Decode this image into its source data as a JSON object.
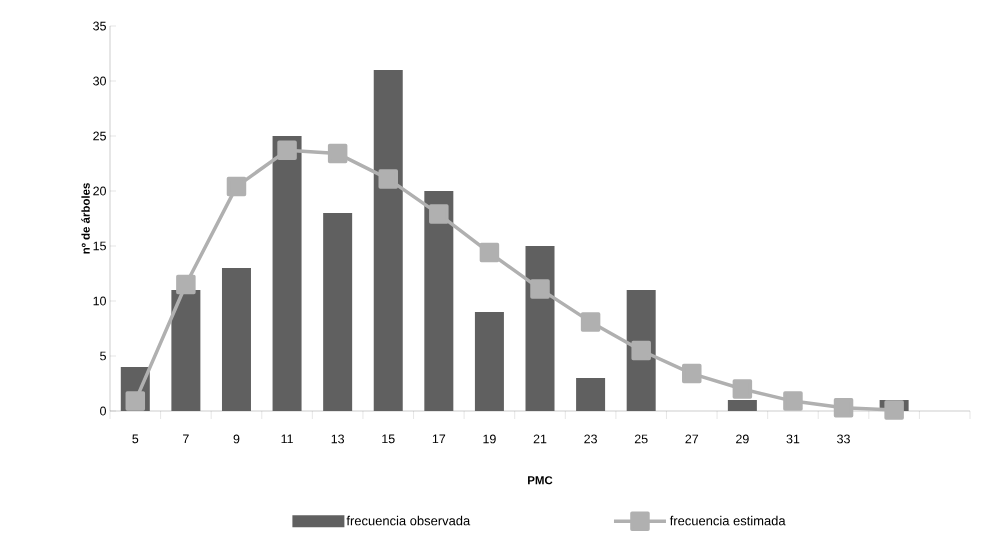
{
  "chart_data": {
    "type": "bar",
    "xlabel": "PMC",
    "ylabel": "nº de árboles",
    "categories": [
      "5",
      "7",
      "9",
      "11",
      "13",
      "15",
      "17",
      "19",
      "21",
      "23",
      "25",
      "27",
      "29",
      "31",
      "33",
      null,
      null
    ],
    "series": [
      {
        "name": "frecuencia observada",
        "color": "#606060",
        "values": [
          4,
          11,
          13,
          25,
          18,
          31,
          20,
          9,
          15,
          3,
          11,
          0,
          1,
          0,
          0,
          1,
          null
        ]
      },
      {
        "name": "frecuencia estimada",
        "type": "line",
        "color": "#b0b0b0",
        "marker": "square",
        "line_style": "solid",
        "values": [
          0.9,
          11.5,
          20.4,
          23.7,
          23.4,
          21.1,
          17.9,
          14.4,
          11.1,
          8.1,
          5.5,
          3.4,
          2.0,
          0.9,
          0.3,
          0.1,
          null
        ]
      }
    ],
    "ylim": [
      0,
      35
    ],
    "yticks": [
      0,
      5,
      10,
      15,
      20,
      25,
      30,
      35
    ],
    "grid": false,
    "legend": "bottom"
  }
}
